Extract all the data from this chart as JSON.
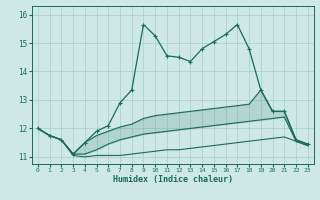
{
  "xlabel": "Humidex (Indice chaleur)",
  "xlim": [
    -0.5,
    23.5
  ],
  "ylim": [
    10.75,
    16.3
  ],
  "yticks": [
    11,
    12,
    13,
    14,
    15,
    16
  ],
  "xticks": [
    0,
    1,
    2,
    3,
    4,
    5,
    6,
    7,
    8,
    9,
    10,
    11,
    12,
    13,
    14,
    15,
    16,
    17,
    18,
    19,
    20,
    21,
    22,
    23
  ],
  "bg_color": "#cde8e5",
  "grid_color": "#a8cfc9",
  "line_color": "#1a6b5a",
  "line_max": [
    12.0,
    11.75,
    11.6,
    11.1,
    11.5,
    11.9,
    12.1,
    12.9,
    13.35,
    15.65,
    15.25,
    14.55,
    14.5,
    14.35,
    14.8,
    15.05,
    15.3,
    15.65,
    14.8,
    13.35,
    12.6,
    12.6,
    11.6,
    11.45
  ],
  "line_hi": [
    12.0,
    11.75,
    11.6,
    11.1,
    11.5,
    11.75,
    11.9,
    12.05,
    12.15,
    12.35,
    12.45,
    12.5,
    12.55,
    12.6,
    12.65,
    12.7,
    12.75,
    12.8,
    12.85,
    13.35,
    12.6,
    12.6,
    11.6,
    11.45
  ],
  "line_lo": [
    12.0,
    11.75,
    11.6,
    11.1,
    11.1,
    11.25,
    11.45,
    11.6,
    11.7,
    11.8,
    11.85,
    11.9,
    11.95,
    12.0,
    12.05,
    12.1,
    12.15,
    12.2,
    12.25,
    12.3,
    12.35,
    12.4,
    11.55,
    11.4
  ],
  "line_min": [
    12.0,
    11.75,
    11.6,
    11.05,
    11.0,
    11.05,
    11.05,
    11.05,
    11.1,
    11.15,
    11.2,
    11.25,
    11.25,
    11.3,
    11.35,
    11.4,
    11.45,
    11.5,
    11.55,
    11.6,
    11.65,
    11.7,
    11.55,
    11.4
  ]
}
